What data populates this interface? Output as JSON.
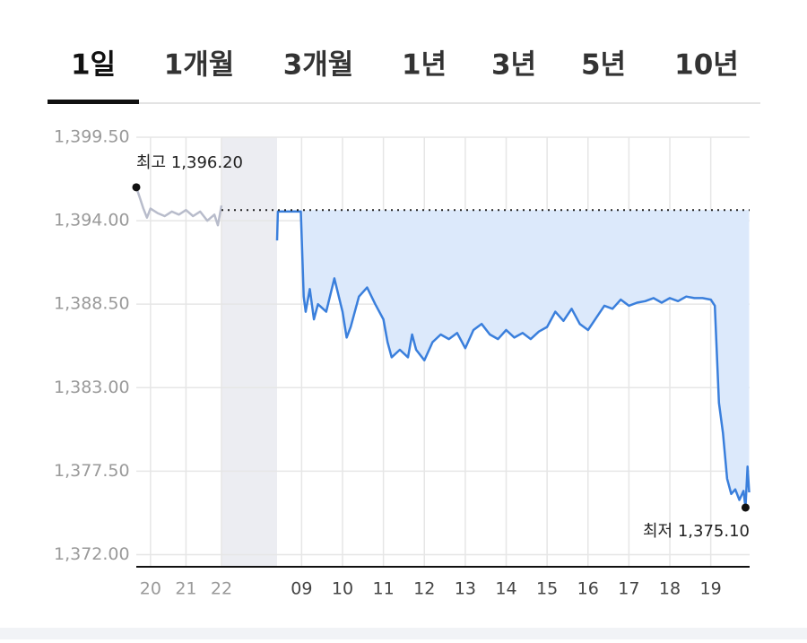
{
  "tabs": [
    "1일",
    "1개월",
    "3개월",
    "1년",
    "3년",
    "5년",
    "10년"
  ],
  "selected_tab": 0,
  "chart_data": {
    "type": "line",
    "ylim": [
      1371.2,
      1399.5
    ],
    "yticks": [
      {
        "value": 1399.5,
        "label": "1,399.50"
      },
      {
        "value": 1394,
        "label": "1,394.00"
      },
      {
        "value": 1388.5,
        "label": "1,388.50"
      },
      {
        "value": 1383,
        "label": "1,383.00"
      },
      {
        "value": 1377.5,
        "label": "1,377.50"
      },
      {
        "value": 1372,
        "label": "1,372.00"
      }
    ],
    "grid": true,
    "reference_line": 1394.7,
    "series": [
      {
        "color": "#b8bccb",
        "xlim": [
          19.6,
          22.0
        ],
        "xticks": [
          20,
          21,
          22
        ],
        "x": [
          19.6,
          19.7,
          19.8,
          19.9,
          20.0,
          20.2,
          20.4,
          20.6,
          20.8,
          21.0,
          21.2,
          21.4,
          21.6,
          21.8,
          21.9,
          22.0
        ],
        "values": [
          1396.2,
          1395.5,
          1394.8,
          1394.2,
          1394.8,
          1394.5,
          1394.3,
          1394.6,
          1394.4,
          1394.7,
          1394.3,
          1394.6,
          1394.0,
          1394.4,
          1393.7,
          1395.0
        ]
      },
      {
        "color": "#3a7fdc",
        "area_color": "#dce9fb",
        "xlim": [
          8.4,
          19.95
        ],
        "xticks": [
          {
            "value": 9,
            "label": "09"
          },
          10,
          11,
          12,
          13,
          14,
          15,
          16,
          17,
          18,
          19
        ],
        "x": [
          8.4,
          8.42,
          8.98,
          9.05,
          9.1,
          9.2,
          9.3,
          9.4,
          9.6,
          9.8,
          10.0,
          10.1,
          10.2,
          10.4,
          10.6,
          10.8,
          11.0,
          11.1,
          11.2,
          11.4,
          11.6,
          11.7,
          11.8,
          12.0,
          12.2,
          12.4,
          12.6,
          12.8,
          13.0,
          13.2,
          13.4,
          13.6,
          13.8,
          14.0,
          14.2,
          14.4,
          14.6,
          14.8,
          15.0,
          15.2,
          15.4,
          15.6,
          15.8,
          16.0,
          16.2,
          16.4,
          16.6,
          16.8,
          17.0,
          17.2,
          17.4,
          17.6,
          17.8,
          18.0,
          18.2,
          18.4,
          18.6,
          18.8,
          19.0,
          19.1,
          19.2,
          19.3,
          19.4,
          19.5,
          19.6,
          19.7,
          19.8,
          19.85,
          19.9,
          19.94
        ],
        "values": [
          1392.7,
          1394.6,
          1394.6,
          1389.0,
          1388.0,
          1389.5,
          1387.5,
          1388.5,
          1388.0,
          1390.2,
          1388.0,
          1386.3,
          1387.0,
          1389.0,
          1389.6,
          1388.5,
          1387.5,
          1386.0,
          1385.0,
          1385.5,
          1385.0,
          1386.5,
          1385.5,
          1384.8,
          1386.0,
          1386.5,
          1386.2,
          1386.6,
          1385.6,
          1386.8,
          1387.2,
          1386.5,
          1386.2,
          1386.8,
          1386.3,
          1386.6,
          1386.2,
          1386.7,
          1387.0,
          1388.0,
          1387.4,
          1388.2,
          1387.2,
          1386.8,
          1387.6,
          1388.4,
          1388.2,
          1388.8,
          1388.4,
          1388.6,
          1388.7,
          1388.9,
          1388.6,
          1388.9,
          1388.7,
          1389.0,
          1388.9,
          1388.9,
          1388.8,
          1388.4,
          1382.0,
          1380.0,
          1377.0,
          1376.0,
          1376.3,
          1375.6,
          1376.2,
          1375.1,
          1377.8,
          1376.1
        ]
      }
    ],
    "annotations": [
      {
        "text": "최고 1,396.20",
        "value": 1396.2,
        "x": 19.6,
        "series": 0
      },
      {
        "text": "최저 1,375.10",
        "value": 1375.1,
        "x": 19.85,
        "series": 1
      }
    ]
  }
}
